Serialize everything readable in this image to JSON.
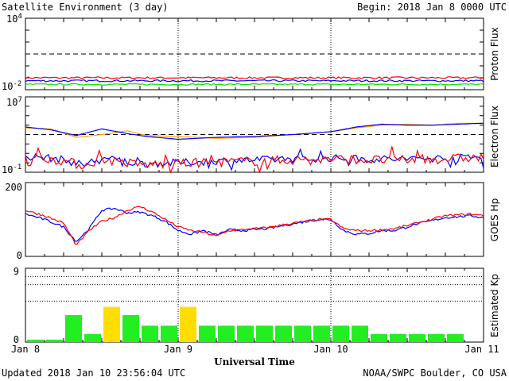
{
  "header": {
    "title": "Satellite Environment (3 day)",
    "begin": "Begin:  2018 Jan 8 0000 UTC"
  },
  "footer": {
    "updated": "Updated 2018 Jan 10 23:56:04 UTC",
    "credit": "NOAA/SWPC Boulder, CO USA"
  },
  "chart_data": {
    "type": "multi-panel",
    "xlabel": "Universal Time",
    "x_ticks": [
      "Jan 8",
      "Jan 9",
      "Jan 10",
      "Jan 11"
    ],
    "panels": [
      {
        "id": "proton",
        "type": "line",
        "ylabel": "Proton Flux",
        "y_scale": "log",
        "ylim_exp": [
          -2,
          4
        ],
        "y_tick_base": "10",
        "y_tick_exps": [
          "4",
          "-2"
        ],
        "threshold_exp": 1,
        "series": [
          {
            "color": "#ff0000",
            "level_exp": -1.0,
            "noise": 0.08
          },
          {
            "color": "#0000ff",
            "level_exp": -1.25,
            "noise": 0.08
          },
          {
            "color": "#00dd00",
            "level_exp": -1.55,
            "noise": 0.06
          }
        ]
      },
      {
        "id": "electron",
        "type": "line",
        "ylabel": "Electron Flux",
        "y_scale": "log",
        "ylim_exp": [
          -1,
          7
        ],
        "y_tick_base": "10",
        "y_tick_exps": [
          "7",
          "-1"
        ],
        "threshold_exp": 3,
        "series": [
          {
            "color": "#ffa500",
            "x": [
              0,
              4,
              8,
              12,
              16,
              19,
              24,
              30,
              36,
              42,
              48,
              52,
              56,
              60,
              64,
              68,
              72
            ],
            "y_exp": [
              3.7,
              3.6,
              2.7,
              3.0,
              3.4,
              2.9,
              2.8,
              2.6,
              2.7,
              3.0,
              3.3,
              3.7,
              4.0,
              4.1,
              4.0,
              4.2,
              4.2
            ]
          },
          {
            "color": "#0000ff",
            "x": [
              0,
              4,
              8,
              12,
              16,
              19,
              24,
              30,
              36,
              42,
              48,
              52,
              56,
              60,
              64,
              68,
              72
            ],
            "y_exp": [
              3.8,
              3.5,
              2.9,
              3.6,
              3.1,
              2.8,
              2.5,
              2.7,
              2.8,
              3.0,
              3.3,
              3.8,
              4.1,
              4.0,
              4.0,
              4.1,
              4.2
            ]
          },
          {
            "color": "#0000ff",
            "x": [
              0,
              4,
              6,
              9,
              12,
              18,
              24,
              30,
              36,
              42,
              48,
              54,
              60,
              66,
              72
            ],
            "y_exp": [
              0.7,
              0.5,
              0.3,
              -0.2,
              0.5,
              -0.1,
              0.0,
              0.2,
              0.3,
              0.4,
              0.5,
              0.4,
              0.4,
              0.5,
              0.6
            ],
            "noise": 0.4
          },
          {
            "color": "#ff0000",
            "x": [
              0,
              4,
              6,
              9,
              12,
              18,
              24,
              30,
              36,
              42,
              48,
              54,
              60,
              66,
              72
            ],
            "y_exp": [
              0.6,
              0.4,
              0.2,
              -0.3,
              0.4,
              -0.2,
              -0.1,
              0.1,
              0.2,
              0.3,
              0.4,
              0.3,
              0.3,
              0.4,
              0.6
            ],
            "noise": 0.5
          }
        ]
      },
      {
        "id": "goes-hp",
        "type": "line",
        "ylabel": "GOES Hp",
        "ylim": [
          0,
          200
        ],
        "y_ticks": [
          0,
          200
        ],
        "series": [
          {
            "color": "#0000ff",
            "x": [
              0,
              3,
              6,
              8,
              10,
              12,
              14,
              16,
              18,
              20,
              22,
              24,
              26,
              28,
              30,
              32,
              34,
              38,
              42,
              46,
              48,
              50,
              52,
              54,
              56,
              58,
              62,
              66,
              70,
              72
            ],
            "y": [
              115,
              100,
              80,
              40,
              75,
              125,
              130,
              118,
              120,
              110,
              95,
              70,
              60,
              70,
              58,
              72,
              70,
              75,
              88,
              100,
              100,
              70,
              60,
              62,
              70,
              70,
              90,
              105,
              110,
              105
            ]
          },
          {
            "color": "#ff0000",
            "x": [
              0,
              3,
              6,
              8,
              10,
              12,
              14,
              16,
              18,
              20,
              22,
              24,
              26,
              28,
              30,
              32,
              34,
              38,
              42,
              46,
              48,
              50,
              52,
              54,
              56,
              58,
              62,
              66,
              70,
              72
            ],
            "y": [
              125,
              110,
              90,
              30,
              70,
              95,
              105,
              125,
              135,
              120,
              100,
              80,
              70,
              65,
              55,
              70,
              72,
              78,
              90,
              100,
              100,
              75,
              70,
              70,
              72,
              75,
              92,
              110,
              115,
              110
            ]
          }
        ]
      },
      {
        "id": "kp",
        "type": "bar",
        "ylabel": "Estimated Kp",
        "ylim": [
          0,
          9
        ],
        "y_ticks": [
          0,
          9
        ],
        "gridlines": [
          5,
          7,
          8,
          9
        ],
        "bar_hours": 3,
        "values": [
          0.3,
          0.3,
          3.3,
          1.0,
          4.3,
          3.3,
          2.0,
          2.0,
          4.3,
          2.0,
          2.0,
          2.0,
          2.0,
          2.0,
          2.0,
          2.0,
          2.0,
          2.0,
          1.0,
          1.0,
          1.0,
          1.0,
          1.0,
          0
        ],
        "colors": {
          "green": "#22ee22",
          "yellow": "#ffdd00",
          "yellow_from": 4
        }
      }
    ]
  }
}
